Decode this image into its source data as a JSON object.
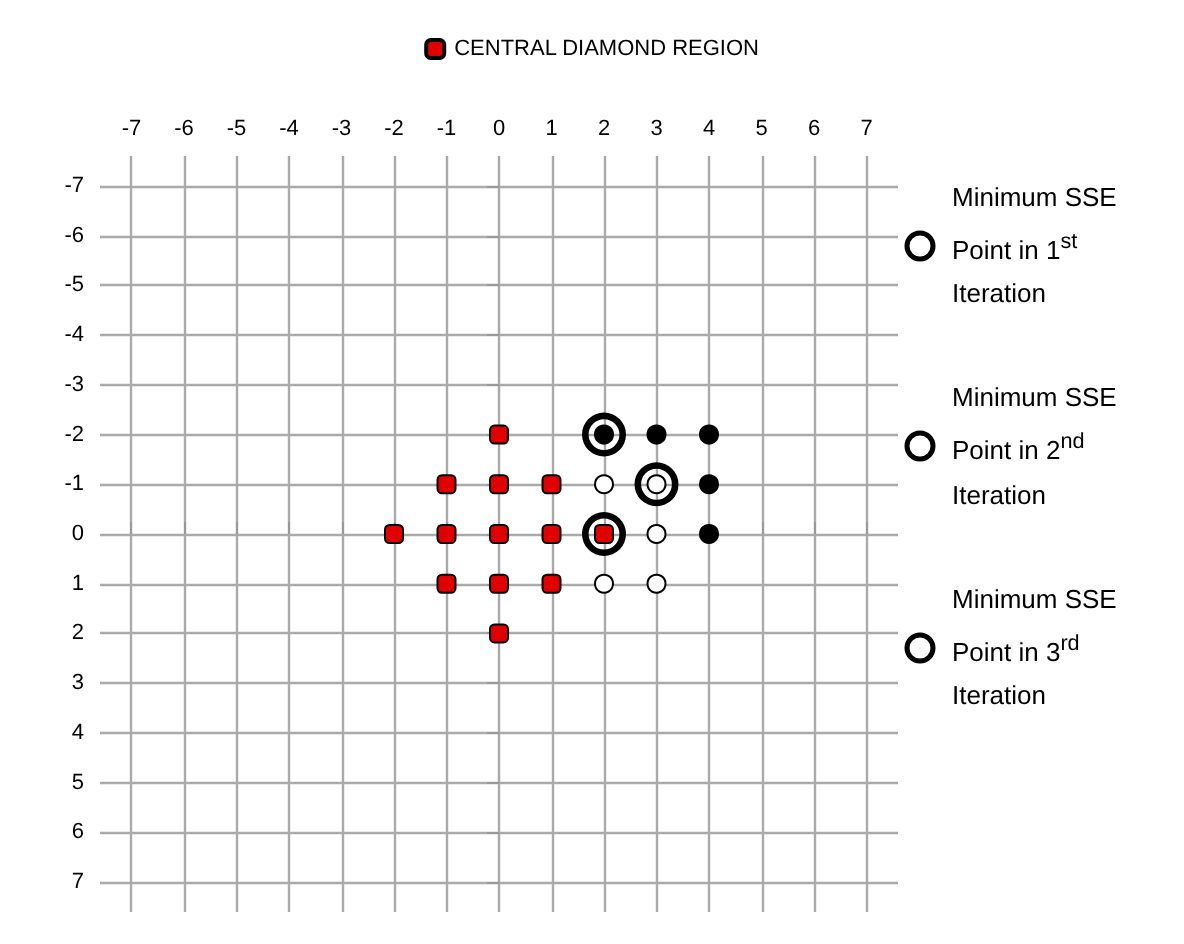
{
  "chart_data": {
    "type": "scatter",
    "xlim": [
      -7.6,
      7.6
    ],
    "ylim": [
      7.6,
      -7.6
    ],
    "xticks": [
      -7,
      -6,
      -5,
      -4,
      -3,
      -2,
      -1,
      0,
      1,
      2,
      3,
      4,
      5,
      6,
      7
    ],
    "yticks": [
      -7,
      -6,
      -5,
      -4,
      -3,
      -2,
      -1,
      0,
      1,
      2,
      3,
      4,
      5,
      6,
      7
    ],
    "grid": true,
    "legend": "right",
    "series": [
      {
        "name": "CENTRAL DIAMOND REGION",
        "color": "#e00000",
        "marker": "square",
        "x": [
          0,
          -1,
          0,
          1,
          -2,
          -1,
          0,
          1,
          2,
          -1,
          0,
          1,
          0
        ],
        "values": [
          -2,
          -1,
          -1,
          -1,
          0,
          0,
          0,
          0,
          0,
          1,
          1,
          1,
          2
        ]
      },
      {
        "color": "#ffffff",
        "marker": "circle",
        "x": [
          2,
          3,
          3,
          2,
          3
        ],
        "values": [
          -1,
          -1,
          0,
          1,
          1
        ]
      },
      {
        "color": "#000000",
        "marker": "circle",
        "x": [
          2,
          3,
          4,
          4,
          4
        ],
        "values": [
          -2,
          -2,
          -2,
          -1,
          0
        ]
      },
      {
        "name": "Minimum SSE Point in 1$^{st}$ Iteration",
        "color": "#000000",
        "marker": "circle",
        "x": [
          2
        ],
        "values": [
          0
        ]
      },
      {
        "name": "Minimum SSE Point in 2$^{nd}$ Iteration",
        "color": "#000000",
        "marker": "circle",
        "x": [
          3
        ],
        "values": [
          -1
        ]
      },
      {
        "name": "Minimum SSE Point in 3$^{rd}$ Iteration",
        "color": "#000000",
        "marker": "circle",
        "x": [
          2
        ],
        "values": [
          -2
        ]
      }
    ]
  }
}
